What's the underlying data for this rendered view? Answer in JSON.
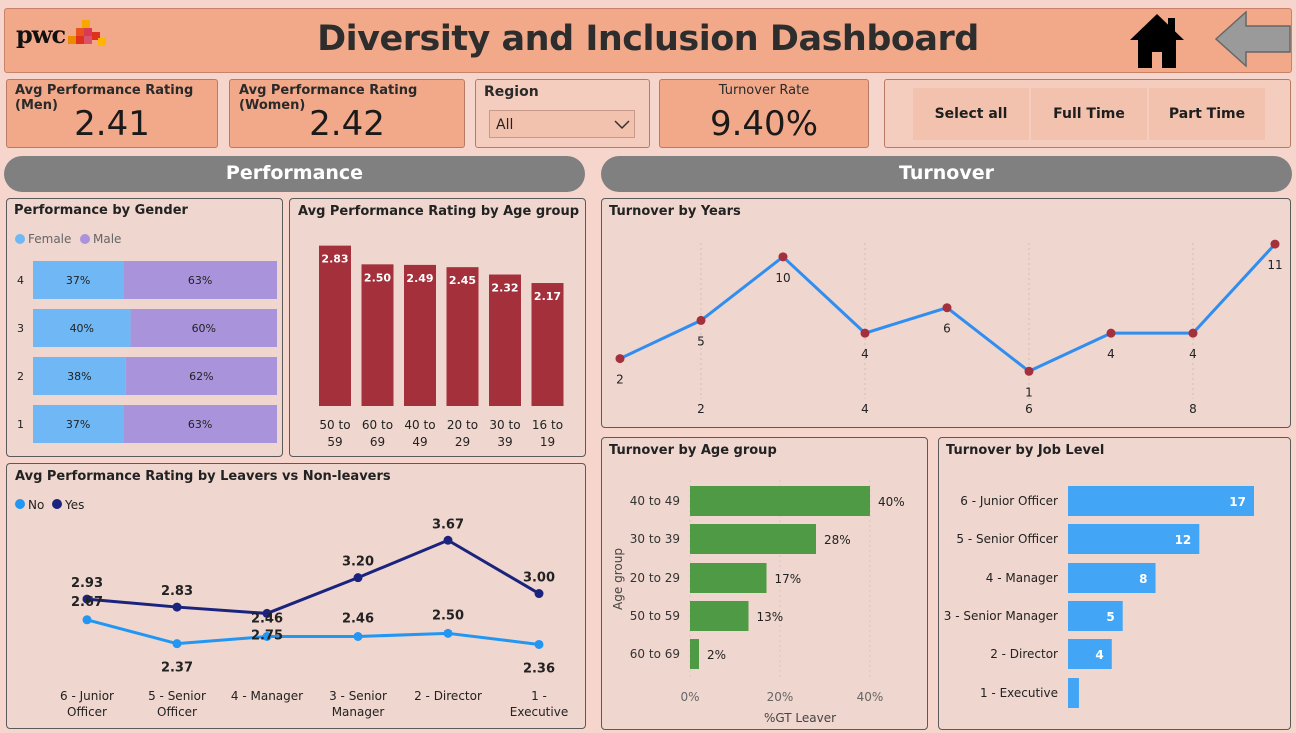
{
  "header": {
    "logo_text": "pwc",
    "title": "Diversity and Inclusion Dashboard"
  },
  "kpis": {
    "men": {
      "label": "Avg Performance Rating (Men)",
      "value": "2.41"
    },
    "women": {
      "label": "Avg Performance Rating (Women)",
      "value": "2.42"
    },
    "region": {
      "label": "Region",
      "selected": "All"
    },
    "turnover": {
      "label": "Turnover Rate",
      "value": "9.40%"
    }
  },
  "slicer": {
    "buttons": [
      "Select all",
      "Full Time",
      "Part Time"
    ]
  },
  "sections": {
    "performance": "Performance",
    "turnover": "Turnover"
  },
  "colors": {
    "female": "#6fb8f5",
    "male": "#a993db",
    "bar_red": "#a3303b",
    "line_blue": "#2f8ef0",
    "point_red": "#a3303b",
    "no": "#2196f3",
    "yes": "#1a237e",
    "green": "#4e9a45",
    "job_blue": "#42a5f5"
  },
  "chart_data": [
    {
      "id": "perf_gender",
      "type": "bar",
      "title": "Performance by Gender",
      "legend": [
        "Female",
        "Male"
      ],
      "categories": [
        "4",
        "3",
        "2",
        "1"
      ],
      "series": [
        {
          "name": "Female",
          "values": [
            37,
            40,
            38,
            37
          ],
          "labels": [
            "37%",
            "40%",
            "38%",
            "37%"
          ]
        },
        {
          "name": "Male",
          "values": [
            63,
            60,
            62,
            63
          ],
          "labels": [
            "63%",
            "60%",
            "62%",
            "63%"
          ]
        }
      ]
    },
    {
      "id": "perf_age",
      "type": "bar",
      "title": "Avg Performance Rating by Age group",
      "categories": [
        "50 to 59",
        "60 to 69",
        "40 to 49",
        "20 to 29",
        "30 to 39",
        "16 to 19"
      ],
      "values": [
        2.83,
        2.5,
        2.49,
        2.45,
        2.32,
        2.17
      ],
      "labels": [
        "2.83",
        "2.50",
        "2.49",
        "2.45",
        "2.32",
        "2.17"
      ],
      "ylim": [
        0,
        3
      ]
    },
    {
      "id": "perf_leavers",
      "type": "line",
      "title": "Avg Performance Rating by Leavers vs Non-leavers",
      "legend": [
        "No",
        "Yes"
      ],
      "categories": [
        "6 - Junior Officer",
        "5 - Senior Officer",
        "4 - Manager",
        "3 - Senior Manager",
        "2 - Director",
        "1 - Executive"
      ],
      "series": [
        {
          "name": "No",
          "values": [
            2.67,
            2.37,
            2.46,
            2.46,
            2.5,
            2.36
          ],
          "labels": [
            "2.67",
            "2.37",
            "2.46",
            "2.46",
            "2.50",
            "2.36"
          ]
        },
        {
          "name": "Yes",
          "values": [
            2.93,
            2.83,
            2.75,
            3.2,
            3.67,
            3.0
          ],
          "labels": [
            "2.93",
            "2.83",
            "2.75",
            "3.20",
            "3.67",
            "3.00"
          ]
        }
      ],
      "ylim": [
        1.8,
        4.0
      ]
    },
    {
      "id": "turnover_years",
      "type": "line",
      "title": "Turnover by Years",
      "x": [
        1,
        2,
        3,
        4,
        5,
        6,
        7,
        8,
        9
      ],
      "xticks": [
        "2",
        "4",
        "6",
        "8"
      ],
      "values": [
        2,
        5,
        10,
        4,
        6,
        1,
        4,
        4,
        11
      ],
      "labels": [
        "2",
        "5",
        "10",
        "4",
        "6",
        "1",
        "4",
        "4",
        "11"
      ],
      "ylim": [
        0,
        12
      ]
    },
    {
      "id": "turnover_age",
      "type": "bar",
      "title": "Turnover by Age group",
      "ylabel": "Age group",
      "xlabel": "%GT Leaver",
      "categories": [
        "40 to 49",
        "30 to 39",
        "20 to 29",
        "50 to 59",
        "60 to 69"
      ],
      "values": [
        40,
        28,
        17,
        13,
        2
      ],
      "labels": [
        "40%",
        "28%",
        "17%",
        "13%",
        "2%"
      ],
      "xticks": [
        "0%",
        "20%",
        "40%"
      ],
      "xlim": [
        0,
        45
      ]
    },
    {
      "id": "turnover_job",
      "type": "bar",
      "title": "Turnover by Job Level",
      "categories": [
        "6 - Junior Officer",
        "5 - Senior Officer",
        "4 - Manager",
        "3 - Senior Manager",
        "2 - Director",
        "1 - Executive"
      ],
      "values": [
        17,
        12,
        8,
        5,
        4,
        1
      ],
      "labels": [
        "17",
        "12",
        "8",
        "5",
        "4",
        ""
      ],
      "xlim": [
        0,
        18
      ]
    }
  ]
}
